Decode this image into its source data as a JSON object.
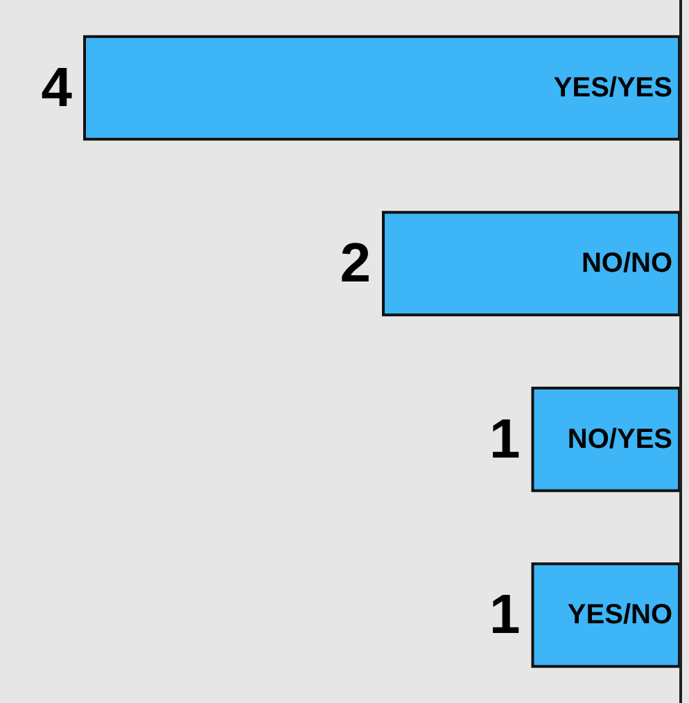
{
  "chart_data": {
    "type": "bar",
    "orientation": "horizontal",
    "categories": [
      "YES/YES",
      "NO/NO",
      "NO/YES",
      "YES/NO"
    ],
    "values": [
      4,
      2,
      1,
      1
    ],
    "color": "#3db5f7",
    "data_labels": true
  }
}
